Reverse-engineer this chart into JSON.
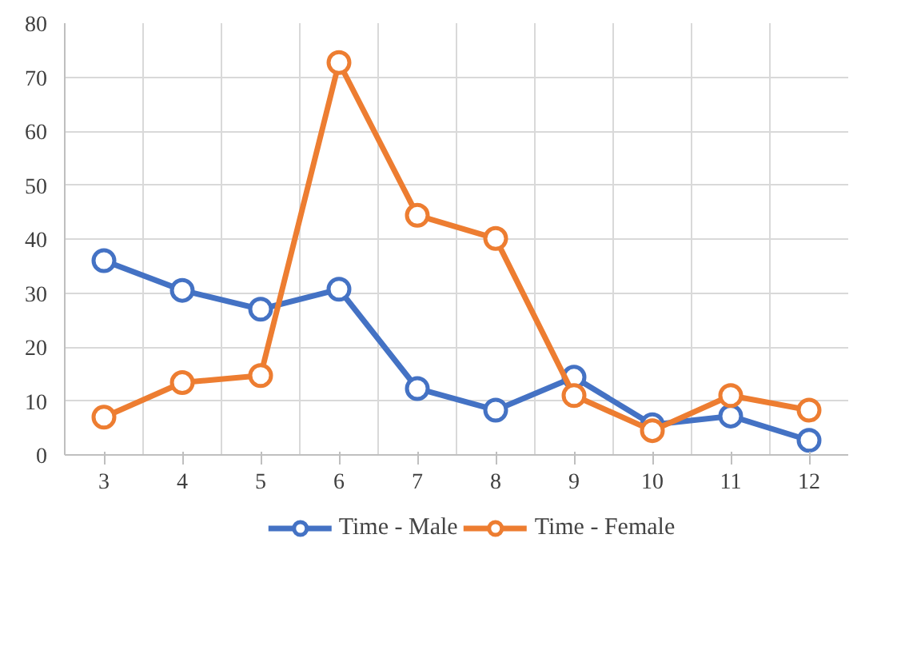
{
  "chart_data": {
    "type": "line",
    "categories": [
      "3",
      "4",
      "5",
      "6",
      "7",
      "8",
      "9",
      "10",
      "11",
      "12"
    ],
    "series": [
      {
        "name": "Time - Male",
        "color": "#4472c4",
        "values": [
          36,
          30.5,
          27,
          30.7,
          12.3,
          8.3,
          14.4,
          5.6,
          7.2,
          2.7
        ]
      },
      {
        "name": "Time - Female",
        "color": "#ed7d31",
        "values": [
          7,
          13.4,
          14.7,
          72.7,
          44.4,
          40.1,
          11,
          4.5,
          11,
          8.3
        ]
      }
    ],
    "ylim": [
      0,
      80
    ],
    "yticks": [
      0,
      10,
      20,
      30,
      40,
      50,
      60,
      70,
      80
    ],
    "grid": true,
    "legend": "bottom",
    "marker": "circle",
    "line_style": "solid"
  }
}
